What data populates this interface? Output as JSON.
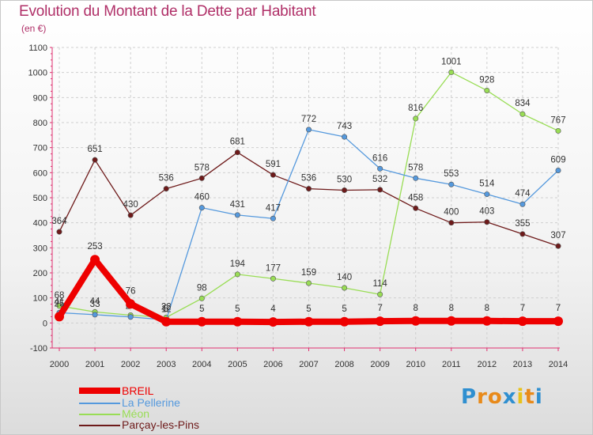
{
  "chart_data": {
    "type": "line",
    "title": "Evolution du Montant de la Dette par Habitant",
    "subtitle": "(en €)",
    "xlabel": "",
    "ylabel": "",
    "ylim": [
      -100,
      1100
    ],
    "yticks": [
      -100,
      0,
      100,
      200,
      300,
      400,
      500,
      600,
      700,
      800,
      900,
      1000,
      1100
    ],
    "x": [
      "2000",
      "2001",
      "2002",
      "2003",
      "2004",
      "2005",
      "2006",
      "2007",
      "2008",
      "2009",
      "2010",
      "2011",
      "2012",
      "2013",
      "2014"
    ],
    "series": [
      {
        "name": "Parçay-les-Pins",
        "color": "#6e1a1a",
        "values": [
          364,
          651,
          430,
          536,
          578,
          681,
          591,
          536,
          530,
          532,
          458,
          400,
          403,
          355,
          307
        ],
        "labels": [
          "364",
          "651",
          "430",
          "536",
          "578",
          "681",
          "591",
          "536",
          "530",
          "532",
          "458",
          "400",
          "403",
          "355",
          "307"
        ]
      },
      {
        "name": "Méon",
        "color": "#99dd55",
        "values": [
          68,
          44,
          31,
          22,
          98,
          194,
          177,
          159,
          140,
          114,
          816,
          1001,
          928,
          834,
          767
        ],
        "labels": [
          "68",
          "44",
          "31",
          "22",
          "98",
          "194",
          "177",
          "159",
          "140",
          "114",
          "816",
          "1001",
          "928",
          "834",
          "767"
        ]
      },
      {
        "name": "La Pellerine",
        "color": "#5599dd",
        "values": [
          41,
          33,
          24,
          12,
          460,
          431,
          417,
          772,
          743,
          616,
          578,
          553,
          514,
          474,
          609
        ],
        "labels": [
          "41",
          "33",
          "24",
          "12",
          "460",
          "431",
          "417",
          "772",
          "743",
          "616",
          "578",
          "553",
          "514",
          "474",
          "609"
        ]
      },
      {
        "name": "BREIL",
        "color": "#ee0000",
        "values": [
          25,
          253,
          76,
          5,
          5,
          5,
          4,
          5,
          5,
          7,
          8,
          8,
          8,
          7,
          7
        ],
        "labels": [
          "25",
          "253",
          "76",
          "5",
          "5",
          "5",
          "4",
          "5",
          "5",
          "7",
          "8",
          "8",
          "8",
          "7",
          "7"
        ]
      }
    ],
    "legend": [
      {
        "name": "BREIL",
        "color": "#ee0000"
      },
      {
        "name": "La Pellerine",
        "color": "#5599dd"
      },
      {
        "name": "Méon",
        "color": "#99dd55"
      },
      {
        "name": "Parçay-les-Pins",
        "color": "#6e1a1a"
      }
    ],
    "legend_position": "bottom-left"
  },
  "logo": {
    "letters": [
      "P",
      "r",
      "o",
      "x",
      "i",
      "t",
      "i"
    ],
    "colors": [
      "#2f8fd0",
      "#e88a1a",
      "#e88a1a",
      "#2f8fd0",
      "#e8c21a",
      "#e88a1a",
      "#2f8fd0"
    ]
  }
}
